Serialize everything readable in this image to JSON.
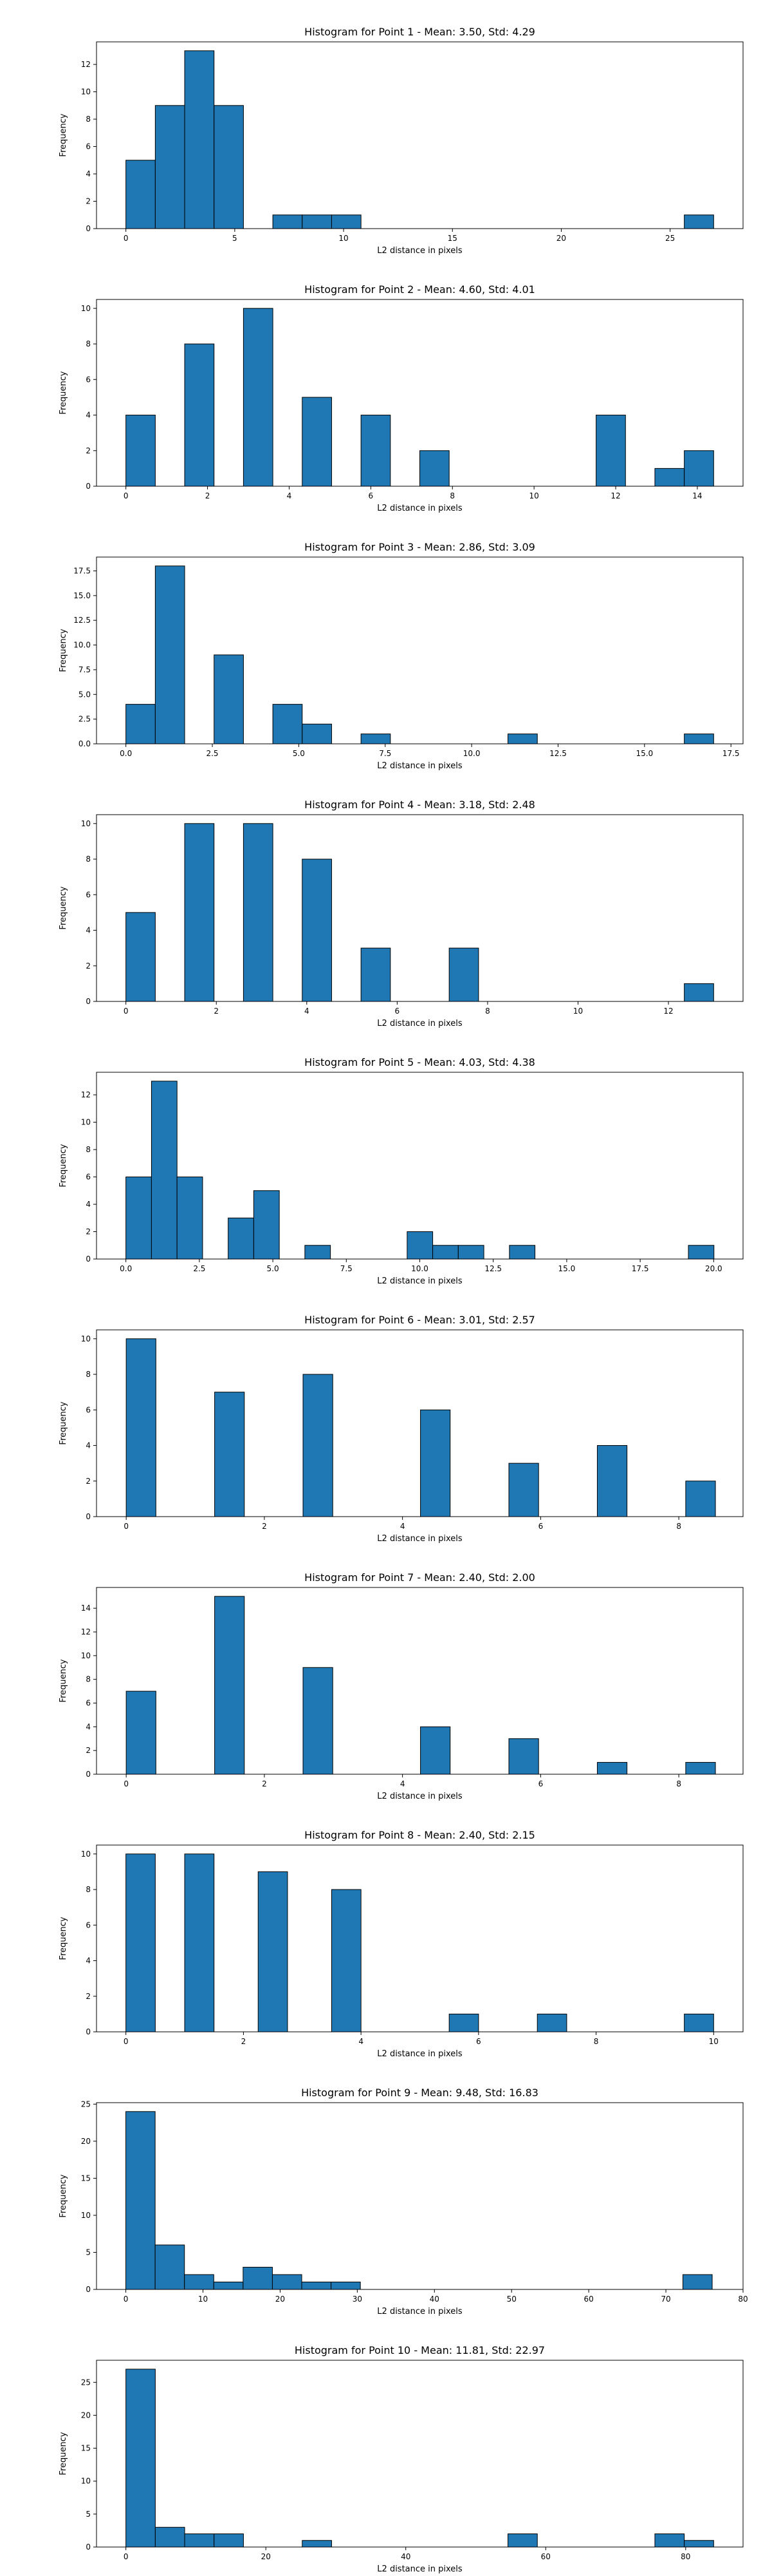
{
  "figure": {
    "bar_color": "#1f77b4",
    "edge_color": "#000000",
    "background": "#ffffff"
  },
  "chart_data": [
    {
      "type": "bar",
      "title": "Histogram for Point 1 - Mean: 3.50, Std: 4.29",
      "xlabel": "L2 distance in pixels",
      "ylabel": "Frequency",
      "xlim": [
        -1.35,
        28.35
      ],
      "ylim": [
        0,
        13.65
      ],
      "xticks": [
        0,
        5,
        10,
        15,
        20,
        25
      ],
      "yticks": [
        0,
        2,
        4,
        6,
        8,
        10,
        12
      ],
      "tick_format": "int",
      "grid": false,
      "bins": [
        {
          "x0": 0.0,
          "x1": 1.35,
          "count": 5
        },
        {
          "x0": 1.35,
          "x1": 2.7,
          "count": 9
        },
        {
          "x0": 2.7,
          "x1": 4.05,
          "count": 13
        },
        {
          "x0": 4.05,
          "x1": 5.4,
          "count": 9
        },
        {
          "x0": 6.75,
          "x1": 8.1,
          "count": 1
        },
        {
          "x0": 8.1,
          "x1": 9.45,
          "count": 1
        },
        {
          "x0": 9.45,
          "x1": 10.8,
          "count": 1
        },
        {
          "x0": 25.65,
          "x1": 27.0,
          "count": 1
        }
      ]
    },
    {
      "type": "bar",
      "title": "Histogram for Point 2 - Mean: 4.60, Std: 4.01",
      "xlabel": "L2 distance in pixels",
      "ylabel": "Frequency",
      "xlim": [
        -0.72,
        15.12
      ],
      "ylim": [
        0,
        10.5
      ],
      "xticks": [
        0,
        2,
        4,
        6,
        8,
        10,
        12,
        14
      ],
      "yticks": [
        0,
        2,
        4,
        6,
        8,
        10
      ],
      "tick_format": "int",
      "grid": false,
      "bins": [
        {
          "x0": 0.0,
          "x1": 0.72,
          "count": 4
        },
        {
          "x0": 1.44,
          "x1": 2.16,
          "count": 8
        },
        {
          "x0": 2.88,
          "x1": 3.6,
          "count": 10
        },
        {
          "x0": 4.32,
          "x1": 5.04,
          "count": 5
        },
        {
          "x0": 5.76,
          "x1": 6.48,
          "count": 4
        },
        {
          "x0": 7.2,
          "x1": 7.92,
          "count": 2
        },
        {
          "x0": 11.52,
          "x1": 12.24,
          "count": 4
        },
        {
          "x0": 12.96,
          "x1": 13.68,
          "count": 1
        },
        {
          "x0": 13.68,
          "x1": 14.4,
          "count": 2
        }
      ]
    },
    {
      "type": "bar",
      "title": "Histogram for Point 3 - Mean: 2.86, Std: 3.09",
      "xlabel": "L2 distance in pixels",
      "ylabel": "Frequency",
      "xlim": [
        -0.85,
        17.85
      ],
      "ylim": [
        0,
        18.9
      ],
      "xticks": [
        0,
        2.5,
        5,
        7.5,
        10,
        12.5,
        15,
        17.5
      ],
      "yticks": [
        0,
        2.5,
        5,
        7.5,
        10,
        12.5,
        15,
        17.5
      ],
      "tick_format": "1dp",
      "grid": false,
      "bins": [
        {
          "x0": 0.0,
          "x1": 0.85,
          "count": 4
        },
        {
          "x0": 0.85,
          "x1": 1.7,
          "count": 18
        },
        {
          "x0": 2.55,
          "x1": 3.4,
          "count": 9
        },
        {
          "x0": 4.25,
          "x1": 5.1,
          "count": 4
        },
        {
          "x0": 5.1,
          "x1": 5.95,
          "count": 2
        },
        {
          "x0": 6.8,
          "x1": 7.65,
          "count": 1
        },
        {
          "x0": 11.05,
          "x1": 11.9,
          "count": 1
        },
        {
          "x0": 16.15,
          "x1": 17.0,
          "count": 1
        }
      ]
    },
    {
      "type": "bar",
      "title": "Histogram for Point 4 - Mean: 3.18, Std: 2.48",
      "xlabel": "L2 distance in pixels",
      "ylabel": "Frequency",
      "xlim": [
        -0.65,
        13.65
      ],
      "ylim": [
        0,
        10.5
      ],
      "xticks": [
        0,
        2,
        4,
        6,
        8,
        10,
        12
      ],
      "yticks": [
        0,
        2,
        4,
        6,
        8,
        10
      ],
      "tick_format": "int",
      "grid": false,
      "bins": [
        {
          "x0": 0.0,
          "x1": 0.65,
          "count": 5
        },
        {
          "x0": 1.3,
          "x1": 1.95,
          "count": 10
        },
        {
          "x0": 2.6,
          "x1": 3.25,
          "count": 10
        },
        {
          "x0": 3.9,
          "x1": 4.55,
          "count": 8
        },
        {
          "x0": 5.2,
          "x1": 5.85,
          "count": 3
        },
        {
          "x0": 7.15,
          "x1": 7.8,
          "count": 3
        },
        {
          "x0": 12.35,
          "x1": 13.0,
          "count": 1
        }
      ]
    },
    {
      "type": "bar",
      "title": "Histogram for Point 5 - Mean: 4.03, Std: 4.38",
      "xlabel": "L2 distance in pixels",
      "ylabel": "Frequency",
      "xlim": [
        -1.0,
        21.0
      ],
      "ylim": [
        0,
        13.65
      ],
      "xticks": [
        0,
        2.5,
        5,
        7.5,
        10,
        12.5,
        15,
        17.5,
        20
      ],
      "yticks": [
        0,
        2,
        4,
        6,
        8,
        10,
        12
      ],
      "tick_format": "1dp",
      "grid": false,
      "bins": [
        {
          "x0": 0.0,
          "x1": 0.87,
          "count": 6
        },
        {
          "x0": 0.87,
          "x1": 1.74,
          "count": 13
        },
        {
          "x0": 1.74,
          "x1": 2.61,
          "count": 6
        },
        {
          "x0": 3.48,
          "x1": 4.35,
          "count": 3
        },
        {
          "x0": 4.35,
          "x1": 5.22,
          "count": 5
        },
        {
          "x0": 6.09,
          "x1": 6.96,
          "count": 1
        },
        {
          "x0": 9.57,
          "x1": 10.44,
          "count": 2
        },
        {
          "x0": 10.44,
          "x1": 11.31,
          "count": 1
        },
        {
          "x0": 11.31,
          "x1": 12.18,
          "count": 1
        },
        {
          "x0": 13.05,
          "x1": 13.92,
          "count": 1
        },
        {
          "x0": 19.14,
          "x1": 20.01,
          "count": 1
        }
      ]
    },
    {
      "type": "bar",
      "title": "Histogram for Point 6 - Mean: 3.01, Std: 2.57",
      "xlabel": "L2 distance in pixels",
      "ylabel": "Frequency",
      "xlim": [
        -0.43,
        8.93
      ],
      "ylim": [
        0,
        10.5
      ],
      "xticks": [
        0,
        2,
        4,
        6,
        8
      ],
      "yticks": [
        0,
        2,
        4,
        6,
        8,
        10
      ],
      "tick_format": "int",
      "grid": false,
      "bins": [
        {
          "x0": 0.0,
          "x1": 0.43,
          "count": 10
        },
        {
          "x0": 1.28,
          "x1": 1.71,
          "count": 7
        },
        {
          "x0": 2.56,
          "x1": 2.99,
          "count": 8
        },
        {
          "x0": 4.26,
          "x1": 4.69,
          "count": 6
        },
        {
          "x0": 5.54,
          "x1": 5.97,
          "count": 3
        },
        {
          "x0": 6.82,
          "x1": 7.25,
          "count": 4
        },
        {
          "x0": 8.1,
          "x1": 8.53,
          "count": 2
        }
      ]
    },
    {
      "type": "bar",
      "title": "Histogram for Point 7 - Mean: 2.40, Std: 2.00",
      "xlabel": "L2 distance in pixels",
      "ylabel": "Frequency",
      "xlim": [
        -0.43,
        8.93
      ],
      "ylim": [
        0,
        15.75
      ],
      "xticks": [
        0,
        2,
        4,
        6,
        8
      ],
      "yticks": [
        0,
        2,
        4,
        6,
        8,
        10,
        12,
        14
      ],
      "tick_format": "int",
      "grid": false,
      "bins": [
        {
          "x0": 0.0,
          "x1": 0.43,
          "count": 7
        },
        {
          "x0": 1.28,
          "x1": 1.71,
          "count": 15
        },
        {
          "x0": 2.56,
          "x1": 2.99,
          "count": 9
        },
        {
          "x0": 4.26,
          "x1": 4.69,
          "count": 4
        },
        {
          "x0": 5.54,
          "x1": 5.97,
          "count": 3
        },
        {
          "x0": 6.82,
          "x1": 7.25,
          "count": 1
        },
        {
          "x0": 8.1,
          "x1": 8.53,
          "count": 1
        }
      ]
    },
    {
      "type": "bar",
      "title": "Histogram for Point 8 - Mean: 2.40, Std: 2.15",
      "xlabel": "L2 distance in pixels",
      "ylabel": "Frequency",
      "xlim": [
        -0.5,
        10.5
      ],
      "ylim": [
        0,
        10.5
      ],
      "xticks": [
        0,
        2,
        4,
        6,
        8,
        10
      ],
      "yticks": [
        0,
        2,
        4,
        6,
        8,
        10
      ],
      "tick_format": "int",
      "grid": false,
      "bins": [
        {
          "x0": 0.0,
          "x1": 0.5,
          "count": 10
        },
        {
          "x0": 1.0,
          "x1": 1.5,
          "count": 10
        },
        {
          "x0": 2.25,
          "x1": 2.75,
          "count": 9
        },
        {
          "x0": 3.5,
          "x1": 4.0,
          "count": 8
        },
        {
          "x0": 5.5,
          "x1": 6.0,
          "count": 1
        },
        {
          "x0": 7.0,
          "x1": 7.5,
          "count": 1
        },
        {
          "x0": 9.5,
          "x1": 10.0,
          "count": 1
        }
      ]
    },
    {
      "type": "bar",
      "title": "Histogram for Point 9 - Mean: 9.48, Std: 16.83",
      "xlabel": "L2 distance in pixels",
      "ylabel": "Frequency",
      "xlim": [
        -3.8,
        80.0
      ],
      "ylim": [
        0,
        25.2
      ],
      "xticks": [
        0,
        10,
        20,
        30,
        40,
        50,
        60,
        70,
        80
      ],
      "yticks": [
        0,
        5,
        10,
        15,
        20,
        25
      ],
      "tick_format": "int",
      "grid": false,
      "bins": [
        {
          "x0": 0.0,
          "x1": 3.8,
          "count": 24
        },
        {
          "x0": 3.8,
          "x1": 7.6,
          "count": 6
        },
        {
          "x0": 7.6,
          "x1": 11.4,
          "count": 2
        },
        {
          "x0": 11.4,
          "x1": 15.2,
          "count": 1
        },
        {
          "x0": 15.2,
          "x1": 19.0,
          "count": 3
        },
        {
          "x0": 19.0,
          "x1": 22.8,
          "count": 2
        },
        {
          "x0": 22.8,
          "x1": 26.6,
          "count": 1
        },
        {
          "x0": 26.6,
          "x1": 30.4,
          "count": 1
        },
        {
          "x0": 72.2,
          "x1": 76.0,
          "count": 2
        }
      ]
    },
    {
      "type": "bar",
      "title": "Histogram for Point 10 - Mean: 11.81, Std: 22.97",
      "xlabel": "L2 distance in pixels",
      "ylabel": "Frequency",
      "xlim": [
        -4.2,
        88.2
      ],
      "ylim": [
        0,
        28.35
      ],
      "xticks": [
        0,
        20,
        40,
        60,
        80
      ],
      "yticks": [
        0,
        5,
        10,
        15,
        20,
        25
      ],
      "tick_format": "int",
      "grid": false,
      "bins": [
        {
          "x0": 0.0,
          "x1": 4.2,
          "count": 27
        },
        {
          "x0": 4.2,
          "x1": 8.4,
          "count": 3
        },
        {
          "x0": 8.4,
          "x1": 12.6,
          "count": 2
        },
        {
          "x0": 12.6,
          "x1": 16.8,
          "count": 2
        },
        {
          "x0": 25.2,
          "x1": 29.4,
          "count": 1
        },
        {
          "x0": 54.6,
          "x1": 58.8,
          "count": 2
        },
        {
          "x0": 75.6,
          "x1": 79.8,
          "count": 2
        },
        {
          "x0": 79.8,
          "x1": 84.0,
          "count": 1
        }
      ]
    }
  ]
}
